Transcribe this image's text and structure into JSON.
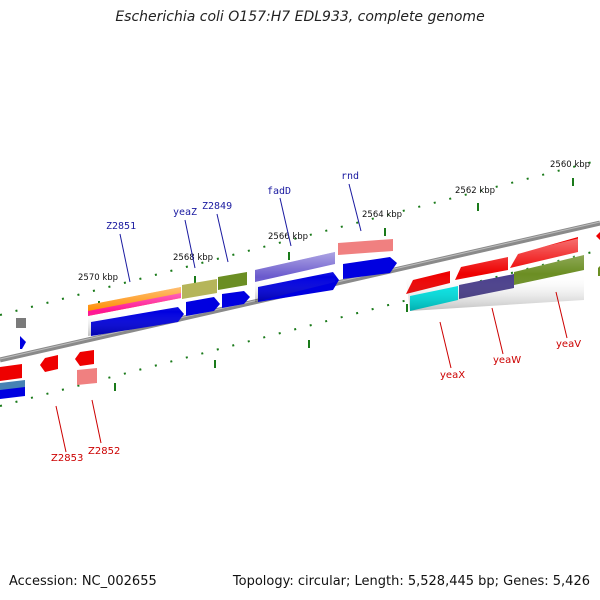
{
  "title": "Escherichia coli O157:H7 EDL933, complete genome",
  "footer": {
    "accession": "Accession: NC_002655",
    "summary": "Topology: circular; Length: 5,528,445 bp; Genes: 5,426"
  },
  "ticks": [
    "2560 kbp",
    "2562 kbp",
    "2564 kbp",
    "2566 kbp",
    "2568 kbp",
    "2570 kbp"
  ],
  "gene_labels_top": [
    "rnd",
    "fadD",
    "Z2849",
    "yeaZ",
    "Z2851"
  ],
  "gene_labels_bottom": [
    "yeaV",
    "yeaW",
    "yeaX",
    "Z2852",
    "Z2853"
  ],
  "colors": {
    "label_top": "#1a1aa0",
    "label_bottom": "#cc0000",
    "backbone": "#7a7a7a",
    "tick": "#1a7a1a"
  }
}
